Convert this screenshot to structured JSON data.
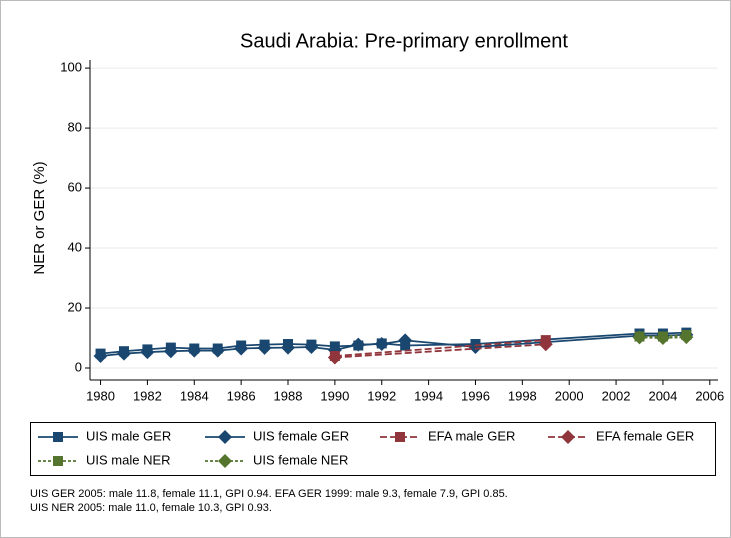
{
  "chart_data": {
    "type": "line",
    "title": "Saudi Arabia: Pre-primary enrollment",
    "ylabel": "NER or GER (%)",
    "xlim": [
      1979.55,
      2006.35
    ],
    "ylim": [
      -4,
      102.7
    ],
    "xticks": [
      1980,
      1982,
      1984,
      1986,
      1988,
      1990,
      1992,
      1994,
      1996,
      1998,
      2000,
      2002,
      2004,
      2006
    ],
    "yticks": [
      0,
      20,
      40,
      60,
      80,
      100
    ],
    "grid": true,
    "series": [
      {
        "name": "UIS male GER",
        "color": "#1a476f",
        "line_style": "solid",
        "marker": "square",
        "x": [
          1980,
          1981,
          1982,
          1983,
          1984,
          1985,
          1986,
          1987,
          1988,
          1989,
          1990,
          1991,
          1992,
          1993,
          1996,
          2003,
          2004,
          2005
        ],
        "values": [
          4.8,
          5.6,
          6.2,
          6.8,
          6.5,
          6.5,
          7.5,
          7.8,
          8.0,
          7.8,
          7.2,
          7.5,
          8.2,
          7.5,
          8.0,
          11.5,
          11.5,
          11.8
        ]
      },
      {
        "name": "UIS female GER",
        "color": "#1a476f",
        "line_style": "solid",
        "marker": "diamond",
        "x": [
          1980,
          1981,
          1982,
          1983,
          1984,
          1985,
          1986,
          1987,
          1988,
          1989,
          1990,
          1991,
          1992,
          1993,
          1996,
          2003,
          2004,
          2005
        ],
        "values": [
          4.0,
          4.8,
          5.3,
          5.6,
          5.8,
          5.8,
          6.5,
          6.7,
          6.8,
          7.0,
          6.0,
          7.8,
          8.0,
          9.2,
          7.0,
          10.8,
          10.8,
          11.1
        ]
      },
      {
        "name": "EFA male GER",
        "color": "#90353b",
        "line_style": "dashed",
        "marker": "square",
        "x": [
          1990,
          1999
        ],
        "values": [
          4.0,
          9.3
        ]
      },
      {
        "name": "EFA female GER",
        "color": "#90353b",
        "line_style": "dashed",
        "marker": "diamond",
        "x": [
          1990,
          1999
        ],
        "values": [
          3.5,
          7.9
        ]
      },
      {
        "name": "UIS male NER",
        "color": "#55752f",
        "line_style": "dotted",
        "marker": "square",
        "x": [
          2003,
          2004,
          2005
        ],
        "values": [
          10.5,
          10.5,
          11.0
        ]
      },
      {
        "name": "UIS female NER",
        "color": "#55752f",
        "line_style": "dotted",
        "marker": "diamond",
        "x": [
          2003,
          2004,
          2005
        ],
        "values": [
          10.2,
          10.0,
          10.3
        ]
      }
    ],
    "notes": [
      "UIS GER 2005: male 11.8, female 11.1, GPI 0.94. EFA GER 1999: male 9.3, female 7.9, GPI 0.85.",
      "UIS NER 2005: male 11.0, female 10.3, GPI 0.93."
    ]
  }
}
